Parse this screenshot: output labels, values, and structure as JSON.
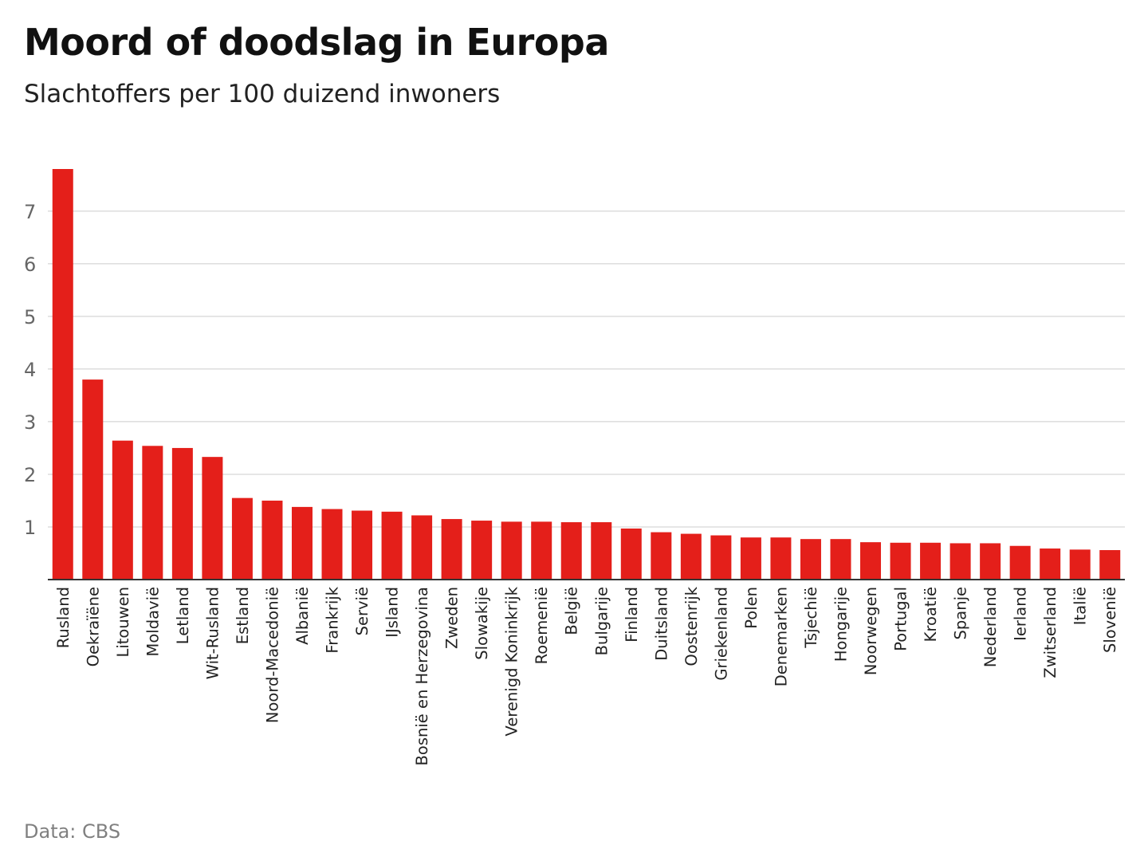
{
  "chart_data": {
    "type": "bar",
    "title": "Moord of doodslag in Europa",
    "subtitle": "Slachtoffers per 100 duizend inwoners",
    "source": "Data: CBS",
    "xlabel": "",
    "ylabel": "",
    "ylim": [
      0,
      7.8
    ],
    "yticks": [
      1,
      2,
      3,
      4,
      5,
      6,
      7
    ],
    "grid": true,
    "bar_color": "#e41f1a",
    "categories": [
      "Rusland",
      "Oekraïëne",
      "Litouwen",
      "Moldavië",
      "Letland",
      "Wit-Rusland",
      "Estland",
      "Noord-Macedonië",
      "Albanië",
      "Frankrijk",
      "Servië",
      "IJsland",
      "Bosnië en Herzegovina",
      "Zweden",
      "Slowakije",
      "Verenigd Koninkrijk",
      "Roemenië",
      "België",
      "Bulgarije",
      "Finland",
      "Duitsland",
      "Oostenrijk",
      "Griekenland",
      "Polen",
      "Denemarken",
      "Tsjechië",
      "Hongarije",
      "Noorwegen",
      "Portugal",
      "Kroatië",
      "Spanje",
      "Nederland",
      "Ierland",
      "Zwitserland",
      "Italië",
      "Slovenië"
    ],
    "values": [
      7.8,
      3.8,
      2.64,
      2.54,
      2.5,
      2.33,
      1.55,
      1.5,
      1.38,
      1.34,
      1.31,
      1.29,
      1.22,
      1.15,
      1.12,
      1.1,
      1.1,
      1.09,
      1.09,
      0.97,
      0.9,
      0.87,
      0.84,
      0.8,
      0.8,
      0.77,
      0.77,
      0.71,
      0.7,
      0.7,
      0.69,
      0.69,
      0.64,
      0.59,
      0.57,
      0.56
    ]
  }
}
